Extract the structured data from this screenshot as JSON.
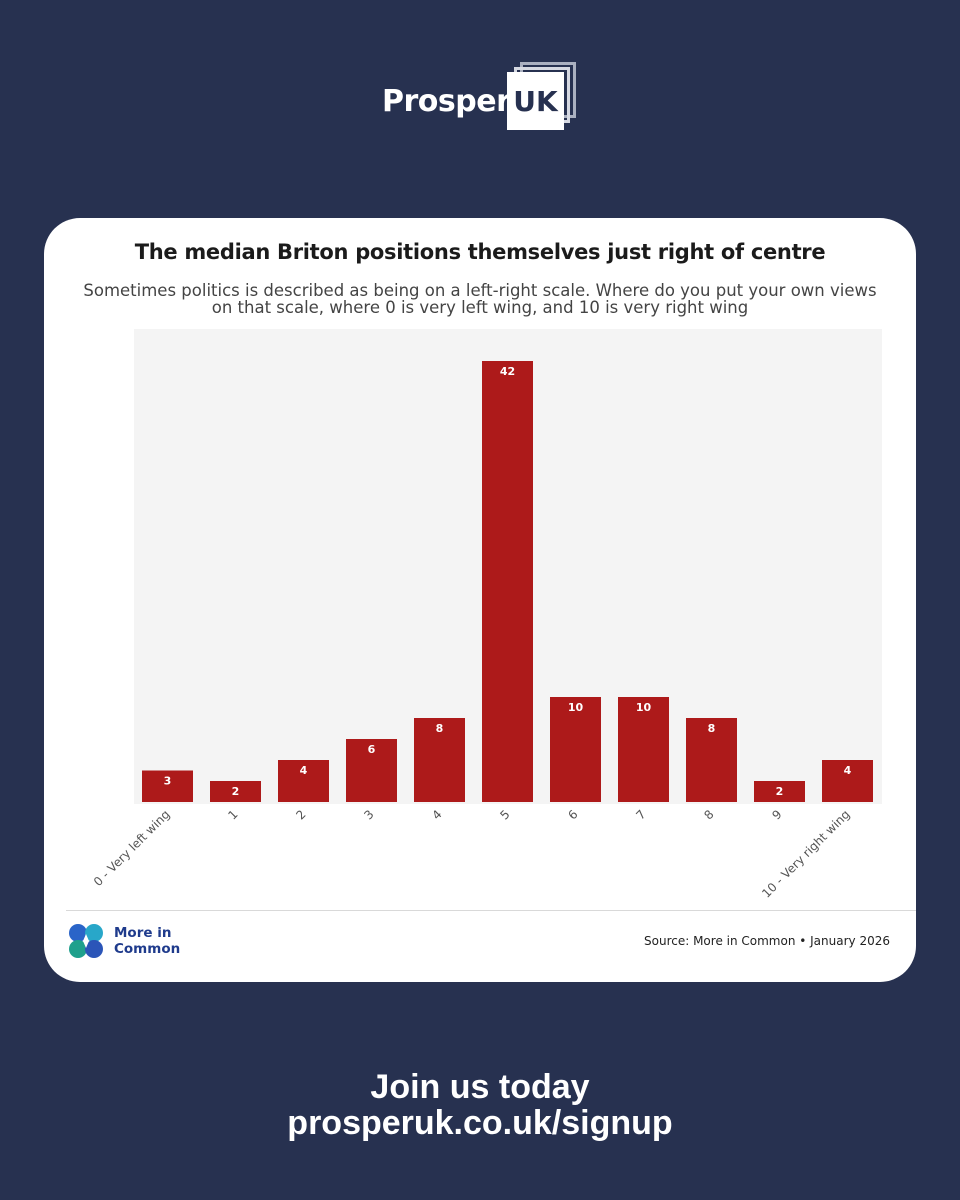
{
  "brand": {
    "wordmark": "Prosper",
    "box_text": "UK"
  },
  "chart_data": {
    "type": "bar",
    "title": "The median Briton positions themselves just right of centre",
    "subtitle": "Sometimes politics is described as being on a left-right scale. Where do you put your own views on that scale, where 0 is very left wing, and 10 is very right wing",
    "categories": [
      "0 - Very left wing",
      "1",
      "2",
      "3",
      "4",
      "5",
      "6",
      "7",
      "8",
      "9",
      "10 - Very right wing"
    ],
    "values": [
      3,
      2,
      4,
      6,
      8,
      42,
      10,
      10,
      8,
      2,
      4
    ],
    "xlabel": "",
    "ylabel": "",
    "ylim": [
      0,
      45
    ],
    "grid": false,
    "bar_color": "#ad1a1a",
    "plot_background": "#f4f4f4",
    "data_labels": true
  },
  "footer": {
    "partner_name_line1": "More in",
    "partner_name_line2": "Common",
    "source": "Source: More in Common • January 2026"
  },
  "cta": {
    "line1": "Join us today",
    "line2": "prosperuk.co.uk/signup"
  },
  "colors": {
    "background": "#273150",
    "card": "#ffffff",
    "partner_blue": "#1f3b8c"
  }
}
